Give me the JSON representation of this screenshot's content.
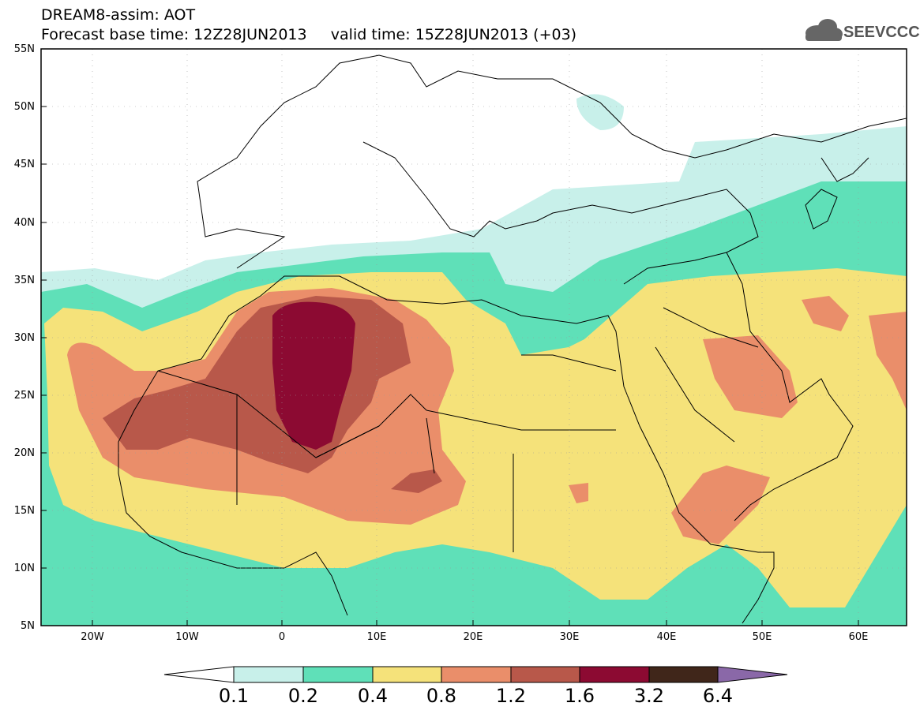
{
  "title": {
    "line1": "DREAM8-assim: AOT",
    "line2": "Forecast base time: 12Z28JUN2013     valid time: 15Z28JUN2013 (+03)"
  },
  "logo": {
    "text": "SEEVCCC",
    "icon": "cloud-logo-icon"
  },
  "lat_labels": [
    "55N",
    "50N",
    "45N",
    "40N",
    "35N",
    "30N",
    "25N",
    "20N",
    "15N",
    "10N",
    "5N"
  ],
  "lon_labels": [
    "20W",
    "10W",
    "0",
    "10E",
    "20E",
    "30E",
    "40E",
    "50E",
    "60E"
  ],
  "colorbar": {
    "labels": [
      "0.1",
      "0.2",
      "0.4",
      "0.8",
      "1.2",
      "1.6",
      "3.2",
      "6.4"
    ],
    "colors": [
      "#c8f0ea",
      "#5fe0b8",
      "#f5e27a",
      "#ea8e6a",
      "#b8584a",
      "#8c0a32",
      "#40261a",
      "#8a68a8"
    ]
  }
}
